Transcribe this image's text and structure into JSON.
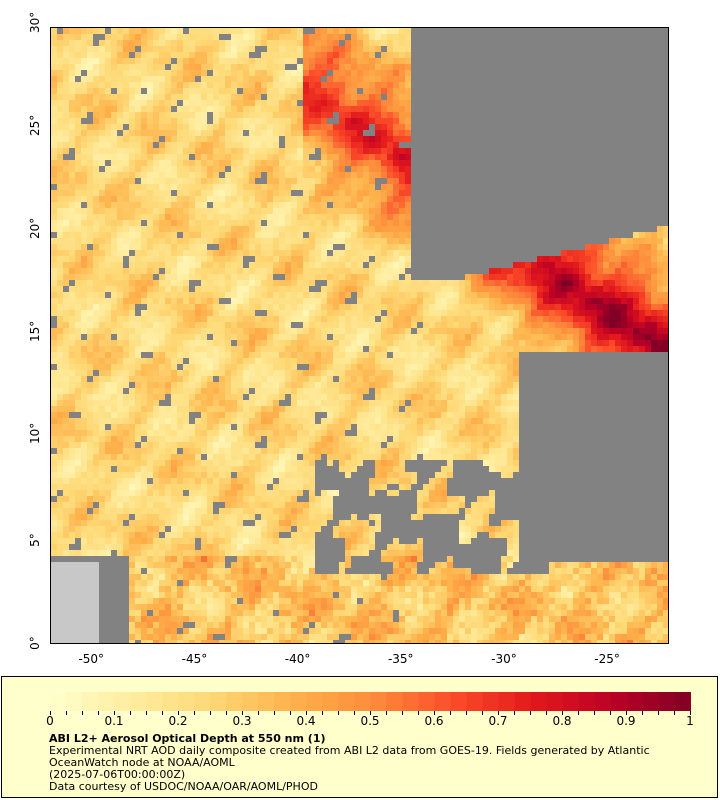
{
  "map": {
    "y_ticks": [
      "0°",
      "5°",
      "10°",
      "15°",
      "20°",
      "25°",
      "30°"
    ],
    "x_ticks": [
      "-50°",
      "-45°",
      "-40°",
      "-35°",
      "-30°",
      "-25°"
    ],
    "lat_range": [
      0,
      30
    ],
    "lon_range": [
      -52,
      -22
    ],
    "missing_color": "#828282",
    "land_color": "#c8c8c8"
  },
  "colorbar": {
    "labels": [
      "0",
      "0.1",
      "0.2",
      "0.3",
      "0.4",
      "0.5",
      "0.6",
      "0.7",
      "0.8",
      "0.9",
      "1"
    ],
    "range": [
      0,
      1
    ],
    "stops": [
      "#ffffcc",
      "#ffeda0",
      "#fed976",
      "#feb24c",
      "#fd8d3c",
      "#fc4e2a",
      "#e31a1c",
      "#bd0026",
      "#800026"
    ]
  },
  "caption": {
    "title": "ABI L2+ Aerosol Optical Depth at 550 nm (1)",
    "description": "Experimental NRT AOD daily composite created from ABI L2 data from GOES-19. Fields generated by Atlantic OceanWatch node at NOAA/AOML",
    "date": "(2025-07-06T00:00:00Z)",
    "credit": "Data courtesy of USDOC/NOAA/OAR/AOML/PHOD"
  }
}
